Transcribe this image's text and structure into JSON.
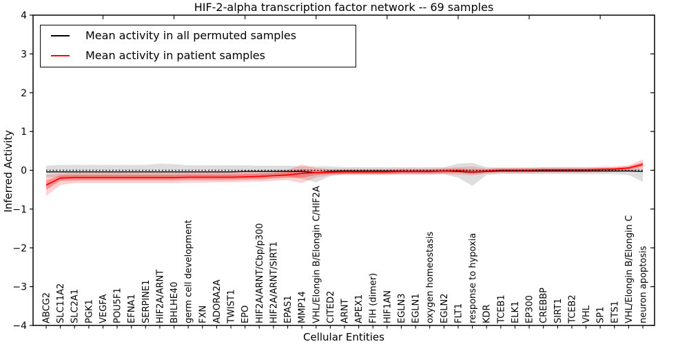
{
  "chart_data": {
    "type": "line",
    "title": "HIF-2-alpha transcription factor network -- 69 samples",
    "xlabel": "Cellular Entities",
    "ylabel": "Inferred Activity",
    "ylim": [
      -4,
      4
    ],
    "yticks": [
      "4",
      "3",
      "2",
      "1",
      "0",
      "−1",
      "−2",
      "−3",
      "−4"
    ],
    "grid": false,
    "legend_position": "upper left",
    "categories": [
      "ABCG2",
      "SLC11A2",
      "SLC2A1",
      "PGK1",
      "VEGFA",
      "POU5F1",
      "EFNA1",
      "SERPINE1",
      "HIF2A/ARNT",
      "BHLHE40",
      "germ cell development",
      "FXN",
      "ADORA2A",
      "TWIST1",
      "EPO",
      "HIF2A/ARNT/Cbp/p300",
      "HIF2A/ARNT/SIRT1",
      "EPAS1",
      "MMP14",
      "VHL/Elongin B/Elongin C/HIF2A",
      "CITED2",
      "ARNT",
      "APEX1",
      "FIH (dimer)",
      "HIF1AN",
      "EGLN3",
      "EGLN1",
      "oxygen homeostasis",
      "EGLN2",
      "FLT1",
      "response to hypoxia",
      "KDR",
      "TCEB1",
      "ELK1",
      "EP300",
      "CREBBP",
      "SIRT1",
      "TCEB2",
      "VHL",
      "SP1",
      "ETS1",
      "VHL/Elongin B/Elongin C",
      "neuron apoptosis"
    ],
    "series": [
      {
        "name": "Mean activity in all permuted samples",
        "color": "#000000",
        "values": [
          -0.04,
          -0.04,
          -0.04,
          -0.04,
          -0.04,
          -0.04,
          -0.04,
          -0.04,
          -0.04,
          -0.04,
          -0.04,
          -0.04,
          -0.04,
          -0.04,
          -0.03,
          -0.03,
          -0.03,
          -0.03,
          -0.03,
          -0.06,
          -0.03,
          -0.02,
          -0.02,
          -0.02,
          -0.02,
          -0.02,
          -0.02,
          -0.02,
          -0.02,
          -0.03,
          -0.05,
          -0.03,
          -0.02,
          -0.02,
          -0.02,
          -0.02,
          -0.02,
          -0.02,
          -0.02,
          -0.02,
          -0.02,
          -0.02,
          -0.03
        ]
      },
      {
        "name": "Mean activity in patient samples",
        "color": "#ff0000",
        "values": [
          -0.38,
          -0.2,
          -0.19,
          -0.19,
          -0.19,
          -0.19,
          -0.19,
          -0.19,
          -0.19,
          -0.19,
          -0.18,
          -0.18,
          -0.18,
          -0.18,
          -0.17,
          -0.16,
          -0.14,
          -0.12,
          -0.08,
          -0.06,
          -0.05,
          -0.04,
          -0.04,
          -0.04,
          -0.04,
          -0.03,
          -0.03,
          -0.03,
          -0.02,
          -0.01,
          -0.04,
          -0.02,
          0.0,
          0.0,
          0.0,
          0.01,
          0.01,
          0.01,
          0.01,
          0.02,
          0.03,
          0.06,
          0.15
        ]
      }
    ],
    "bands": [
      {
        "name": "permuted-samples-range",
        "color": "#999999",
        "opacity": 0.32,
        "upper": [
          0.12,
          0.14,
          0.14,
          0.14,
          0.14,
          0.14,
          0.14,
          0.14,
          0.17,
          0.16,
          0.13,
          0.13,
          0.13,
          0.13,
          0.13,
          0.12,
          0.12,
          0.12,
          0.1,
          0.1,
          0.1,
          0.08,
          0.08,
          0.08,
          0.08,
          0.08,
          0.08,
          0.08,
          0.08,
          0.17,
          0.19,
          0.08,
          0.07,
          0.07,
          0.07,
          0.07,
          0.07,
          0.07,
          0.07,
          0.07,
          0.07,
          0.06,
          0.05
        ],
        "lower": [
          -0.18,
          -0.18,
          -0.18,
          -0.18,
          -0.18,
          -0.18,
          -0.18,
          -0.18,
          -0.2,
          -0.19,
          -0.18,
          -0.18,
          -0.18,
          -0.18,
          -0.17,
          -0.16,
          -0.16,
          -0.16,
          -0.22,
          -0.31,
          -0.15,
          -0.1,
          -0.1,
          -0.1,
          -0.1,
          -0.1,
          -0.1,
          -0.1,
          -0.1,
          -0.19,
          -0.4,
          -0.12,
          -0.1,
          -0.1,
          -0.1,
          -0.1,
          -0.1,
          -0.1,
          -0.1,
          -0.1,
          -0.1,
          -0.12,
          -0.3
        ]
      },
      {
        "name": "patient-samples-range-outer",
        "color": "#ff0000",
        "opacity": 0.18,
        "upper": [
          -0.12,
          -0.08,
          -0.06,
          -0.06,
          -0.06,
          -0.06,
          -0.06,
          -0.06,
          -0.06,
          -0.06,
          -0.05,
          -0.05,
          -0.05,
          -0.05,
          -0.04,
          -0.03,
          -0.01,
          0.01,
          0.15,
          0.06,
          0.03,
          0.04,
          0.04,
          0.04,
          0.04,
          0.05,
          0.05,
          0.05,
          0.06,
          0.08,
          0.1,
          0.05,
          0.07,
          0.07,
          0.07,
          0.08,
          0.08,
          0.08,
          0.08,
          0.09,
          0.1,
          0.13,
          0.28
        ],
        "lower": [
          -0.66,
          -0.38,
          -0.33,
          -0.33,
          -0.33,
          -0.33,
          -0.33,
          -0.33,
          -0.33,
          -0.33,
          -0.32,
          -0.32,
          -0.31,
          -0.31,
          -0.3,
          -0.29,
          -0.27,
          -0.25,
          -0.33,
          -0.18,
          -0.13,
          -0.12,
          -0.12,
          -0.12,
          -0.12,
          -0.11,
          -0.11,
          -0.11,
          -0.1,
          -0.11,
          -0.13,
          -0.09,
          -0.07,
          -0.07,
          -0.07,
          -0.06,
          -0.06,
          -0.06,
          -0.06,
          -0.05,
          -0.04,
          -0.03,
          0.03
        ]
      },
      {
        "name": "patient-samples-range-inner",
        "color": "#ff0000",
        "opacity": 0.3,
        "upper": [
          -0.26,
          -0.13,
          -0.12,
          -0.12,
          -0.12,
          -0.12,
          -0.12,
          -0.12,
          -0.12,
          -0.12,
          -0.11,
          -0.11,
          -0.11,
          -0.11,
          -0.1,
          -0.09,
          -0.07,
          -0.05,
          0.03,
          0.0,
          0.0,
          0.01,
          0.01,
          0.01,
          0.01,
          0.02,
          0.02,
          0.02,
          0.03,
          0.04,
          0.02,
          0.02,
          0.04,
          0.04,
          0.04,
          0.05,
          0.05,
          0.05,
          0.05,
          0.06,
          0.07,
          0.1,
          0.21
        ],
        "lower": [
          -0.5,
          -0.27,
          -0.26,
          -0.26,
          -0.26,
          -0.26,
          -0.26,
          -0.26,
          -0.26,
          -0.26,
          -0.25,
          -0.25,
          -0.25,
          -0.25,
          -0.24,
          -0.23,
          -0.21,
          -0.19,
          -0.19,
          -0.12,
          -0.1,
          -0.09,
          -0.09,
          -0.09,
          -0.09,
          -0.08,
          -0.08,
          -0.08,
          -0.07,
          -0.06,
          -0.1,
          -0.06,
          -0.04,
          -0.04,
          -0.04,
          -0.03,
          -0.03,
          -0.03,
          -0.03,
          -0.02,
          -0.01,
          0.02,
          0.09
        ]
      }
    ],
    "reference_line": {
      "y": 0,
      "style": "dotted",
      "color": "#000000"
    }
  }
}
